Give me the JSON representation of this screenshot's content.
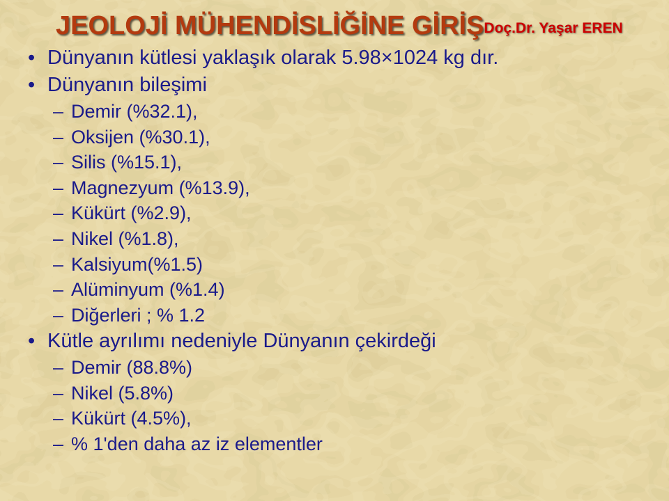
{
  "colors": {
    "bg_base": "#e8d9a8",
    "bg_mottle_1": "#d9c98f",
    "bg_mottle_2": "#f0e4bb",
    "bg_mottle_3": "#cfbf85",
    "title": "#b33a0f",
    "subtitle": "#cc0000",
    "body": "#1a1a8a",
    "bullet": "#1a1a8a"
  },
  "title": "JEOLOJİ MÜHENDİSLİĞİNE GİRİŞ",
  "subtitle": "Doç.Dr. Yaşar EREN",
  "bullets": [
    {
      "text": "Dünyanın kütlesi yaklaşık olarak 5.98×1024 kg dır.",
      "sub": []
    },
    {
      "text": "Dünyanın bileşimi",
      "sub": [
        "Demir (%32.1),",
        "Oksijen (%30.1),",
        "Silis (%15.1),",
        "Magnezyum (%13.9),",
        "Kükürt (%2.9),",
        "Nikel (%1.8),",
        "Kalsiyum(%1.5)",
        "Alüminyum (%1.4)",
        "Diğerleri ; % 1.2"
      ]
    },
    {
      "text": "Kütle ayrılımı nedeniyle Dünyanın çekirdeği",
      "sub": [
        "Demir (88.8%)",
        "Nikel (5.8%)",
        "Kükürt (4.5%),",
        "% 1'den daha az iz elementler"
      ]
    }
  ]
}
